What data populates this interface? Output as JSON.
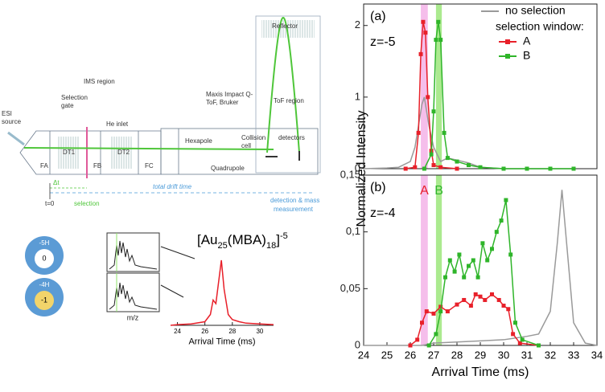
{
  "diagram": {
    "esi_source": [
      "ESI",
      "source"
    ],
    "selection_gate": [
      "Selection",
      "gate"
    ],
    "ims_region": "IMS region",
    "he_inlet": "He inlet",
    "maxis": [
      "Maxis Impact Q-",
      "ToF, Bruker"
    ],
    "reflector": "Reflector",
    "tof_region": "ToF region",
    "sections": [
      "FA",
      "DT1",
      "FB",
      "DT2",
      "FC"
    ],
    "hexapole": "Hexapole",
    "collision_cell": [
      "Collision",
      "cell"
    ],
    "quadrupole": "Quadrupole",
    "detectors": "detectors",
    "delta_t": "Δt",
    "total_drift_time": "total drift time",
    "t0": "t=0",
    "selection": "selection",
    "detection": [
      "detection & mass",
      "measurement"
    ],
    "charge_states": [
      {
        "top": "-5H",
        "center": "0"
      },
      {
        "top": "-4H",
        "center": "-1"
      }
    ],
    "mz": "m/z"
  },
  "chart_data": [
    {
      "type": "line",
      "panel_label": "(a)",
      "annotation": "z=-5",
      "ylabel": "Normalized Intensity",
      "legend_title": "selection window:",
      "xlim": [
        24,
        34
      ],
      "ylim": [
        0,
        2.3
      ],
      "yticks": [
        0,
        1,
        2
      ],
      "bands": [
        {
          "x": [
            26.45,
            26.75
          ],
          "color": "#f2a8e4"
        },
        {
          "x": [
            27.1,
            27.35
          ],
          "color": "#8fe36a"
        }
      ],
      "series": [
        {
          "name": "no selection",
          "color": "#9a9a9a",
          "x": [
            24,
            25,
            25.5,
            26,
            26.2,
            26.4,
            26.5,
            26.6,
            26.8,
            27,
            27.3,
            27.6,
            28,
            28.5,
            29,
            30,
            33
          ],
          "values": [
            0,
            0.01,
            0.02,
            0.1,
            0.3,
            0.7,
            0.9,
            1.0,
            0.6,
            0.3,
            0.1,
            0.15,
            0.12,
            0.08,
            0.02,
            0,
            0
          ]
        },
        {
          "name": "A",
          "color": "#e8202a",
          "marker": "square",
          "x": [
            25.8,
            26.2,
            26.35,
            26.45,
            26.55,
            26.65,
            26.75,
            26.9,
            27.0,
            27.3,
            28
          ],
          "values": [
            0,
            0.02,
            0.5,
            1.6,
            2.05,
            1.9,
            1.0,
            0.25,
            0.05,
            0.02,
            0
          ]
        },
        {
          "name": "B",
          "color": "#2fb52a",
          "marker": "square",
          "x": [
            26.6,
            26.9,
            27.0,
            27.1,
            27.2,
            27.3,
            27.45,
            27.6,
            28,
            28.5,
            29,
            30,
            31,
            32,
            33
          ],
          "values": [
            0,
            0.2,
            0.8,
            1.8,
            2.05,
            1.8,
            0.5,
            0.15,
            0.1,
            0.05,
            0.02,
            0,
            0,
            0,
            0
          ]
        }
      ]
    },
    {
      "type": "line",
      "panel_label": "(b)",
      "annotation": "z=-4",
      "xlabel": "Arrival Time (ms)",
      "xlim": [
        24,
        34
      ],
      "ylim": [
        0,
        0.15
      ],
      "xticks": [
        24,
        25,
        26,
        27,
        28,
        29,
        30,
        31,
        32,
        33,
        34
      ],
      "yticks": [
        0,
        {
          "value": 0.05,
          "label": "0,05"
        },
        {
          "value": 0.1,
          "label": "0,1"
        },
        {
          "value": 0.15,
          "label": "0,15"
        }
      ],
      "bands": [
        {
          "x": [
            26.45,
            26.75
          ],
          "color": "#f2a8e4",
          "label": "A",
          "label_color": "#e8202a"
        },
        {
          "x": [
            27.1,
            27.35
          ],
          "color": "#8fe36a",
          "label": "B",
          "label_color": "#2fb52a"
        }
      ],
      "series": [
        {
          "name": "no selection",
          "color": "#9a9a9a",
          "x": [
            24,
            26.5,
            27,
            28,
            29,
            30,
            31,
            31.5,
            32,
            32.3,
            32.5,
            32.7,
            33,
            33.5,
            34
          ],
          "values": [
            0,
            0,
            0.002,
            0.003,
            0.004,
            0.005,
            0.008,
            0.01,
            0.03,
            0.09,
            0.137,
            0.09,
            0.02,
            0.002,
            0
          ]
        },
        {
          "name": "A",
          "color": "#e8202a",
          "marker": "square",
          "x": [
            26.0,
            26.3,
            26.5,
            26.7,
            27,
            27.3,
            27.6,
            28,
            28.3,
            28.6,
            28.8,
            29,
            29.2,
            29.5,
            29.8,
            30,
            30.2,
            30.4,
            30.7,
            31.5
          ],
          "values": [
            0,
            0.005,
            0.02,
            0.03,
            0.028,
            0.034,
            0.03,
            0.036,
            0.04,
            0.035,
            0.045,
            0.043,
            0.04,
            0.045,
            0.04,
            0.035,
            0.032,
            0.01,
            0.002,
            0
          ]
        },
        {
          "name": "B",
          "color": "#2fb52a",
          "marker": "square",
          "x": [
            26.8,
            27.1,
            27.3,
            27.5,
            27.7,
            27.9,
            28.1,
            28.3,
            28.5,
            28.7,
            28.9,
            29.1,
            29.3,
            29.5,
            29.7,
            29.9,
            30.1,
            30.3,
            30.5,
            30.8,
            31.5
          ],
          "values": [
            0,
            0.01,
            0.03,
            0.06,
            0.075,
            0.065,
            0.08,
            0.06,
            0.07,
            0.075,
            0.06,
            0.09,
            0.075,
            0.085,
            0.1,
            0.11,
            0.128,
            0.08,
            0.02,
            0.005,
            0
          ]
        }
      ]
    },
    {
      "type": "line",
      "title_parts": [
        "[Au",
        "25",
        "(MBA)",
        "18",
        "]",
        "-5"
      ],
      "xlabel": "Arrival Time (ms)",
      "xlim": [
        23.5,
        31
      ],
      "ylim": [
        0,
        1
      ],
      "xticks": [
        24,
        26,
        28,
        30
      ],
      "series": [
        {
          "color": "#e8202a",
          "x": [
            23.5,
            24,
            25,
            26,
            26.4,
            26.6,
            26.8,
            27.0,
            27.2,
            27.4,
            27.7,
            28,
            28.5,
            29,
            30,
            31
          ],
          "values": [
            0,
            0.01,
            0.02,
            0.05,
            0.15,
            0.35,
            0.3,
            0.6,
            0.9,
            0.5,
            0.15,
            0.08,
            0.05,
            0.03,
            0.02,
            0.01
          ]
        }
      ]
    }
  ]
}
